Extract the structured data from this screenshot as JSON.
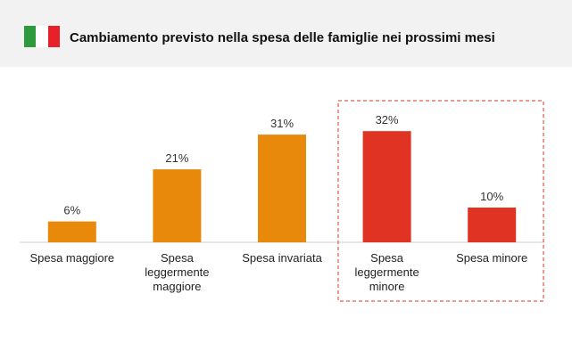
{
  "chart_data": {
    "type": "bar",
    "title": "Cambiamento previsto nella spesa delle famiglie nei prossimi mesi",
    "categories": [
      "Spesa maggiore",
      "Spesa\nleggermente\nmaggiore",
      "Spesa invariata",
      "Spesa\nleggermente\nminore",
      "Spesa minore"
    ],
    "values": [
      6,
      21,
      31,
      32,
      10
    ],
    "value_labels": [
      "6%",
      "21%",
      "31%",
      "32%",
      "10%"
    ],
    "colors": [
      "#e8890c",
      "#e8890c",
      "#e8890c",
      "#e03323",
      "#e03323"
    ]
  }
}
